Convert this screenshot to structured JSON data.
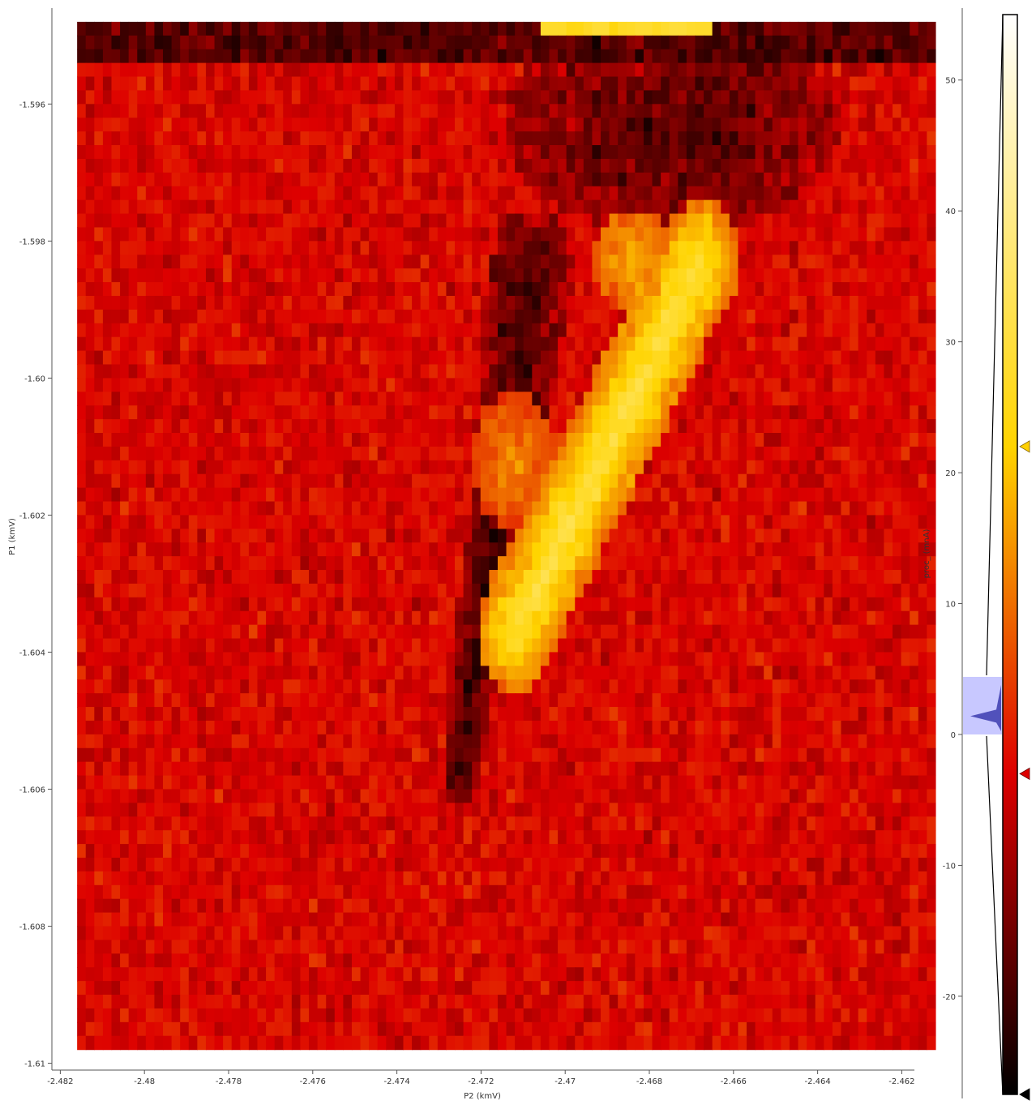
{
  "chart_data": {
    "type": "heatmap",
    "xlabel": "P2 (kmV)",
    "ylabel": "P1 (kmV)",
    "colorbar_label": "proc_ (mnA)",
    "xlim": [
      -2.4822,
      -2.4617
    ],
    "ylim": [
      -1.6101,
      -1.5946
    ],
    "x_ticks": [
      {
        "value": -2.482,
        "label": "-2.482"
      },
      {
        "value": -2.48,
        "label": "-2.48"
      },
      {
        "value": -2.478,
        "label": "-2.478"
      },
      {
        "value": -2.476,
        "label": "-2.476"
      },
      {
        "value": -2.474,
        "label": "-2.474"
      },
      {
        "value": -2.472,
        "label": "-2.472"
      },
      {
        "value": -2.47,
        "label": "-2.47"
      },
      {
        "value": -2.468,
        "label": "-2.468"
      },
      {
        "value": -2.466,
        "label": "-2.466"
      },
      {
        "value": -2.464,
        "label": "-2.464"
      },
      {
        "value": -2.462,
        "label": "-2.462"
      }
    ],
    "y_ticks": [
      {
        "value": -1.596,
        "label": "-1.596"
      },
      {
        "value": -1.598,
        "label": "-1.598"
      },
      {
        "value": -1.6,
        "label": "-1.60"
      },
      {
        "value": -1.602,
        "label": "-1.602"
      },
      {
        "value": -1.604,
        "label": "-1.604"
      },
      {
        "value": -1.606,
        "label": "-1.606"
      },
      {
        "value": -1.608,
        "label": "-1.608"
      },
      {
        "value": -1.61,
        "label": "-1.61"
      }
    ],
    "image_extent": {
      "x": [
        -2.4816,
        -2.4612
      ],
      "y": [
        -1.6098,
        -1.5948
      ]
    },
    "grid_cols": 100,
    "grid_rows": 75,
    "colorbar": {
      "ticks": [
        {
          "value": 50,
          "label": "50"
        },
        {
          "value": 40,
          "label": "40"
        },
        {
          "value": 30,
          "label": "30"
        },
        {
          "value": 20,
          "label": "20"
        },
        {
          "value": 10,
          "label": "10"
        },
        {
          "value": 0,
          "label": "0"
        },
        {
          "value": -10,
          "label": "-10"
        },
        {
          "value": -20,
          "label": "-20"
        }
      ],
      "range": [
        -27.5,
        55
      ],
      "levels": {
        "low": -27.5,
        "mid": -3,
        "high": 22,
        "max": 55
      },
      "histogram_range": [
        0,
        4.4
      ],
      "colors": {
        "low": "#000000",
        "mid": "#dd0000",
        "high": "#ffd400",
        "max": "#ffffff",
        "low_marker": "#000000",
        "mid_marker": "#dd0000",
        "high_marker": "#ffd000",
        "histogram": "#c8c8ff",
        "histogram_line": "#3333aa"
      }
    },
    "background_level": -3,
    "features": {
      "top_rows_level": -18,
      "bright_band": {
        "x_start": -2.4712,
        "y_start": -1.6037,
        "x_end": -2.4668,
        "y_end": -1.5983,
        "width": 0.0009,
        "level": 24
      },
      "secondary_bright": {
        "x": -2.4683,
        "y": -1.5983,
        "level": 18
      },
      "dark_shadow": {
        "x_start": -2.4725,
        "y_start": -1.6058,
        "x_end": -2.4708,
        "y_end": -1.5985,
        "width": 0.0007,
        "level": -20
      },
      "dark_upper": {
        "x": -2.4675,
        "y": -1.5963,
        "level": -19
      },
      "top_bright_strip": {
        "x": [
          -2.4705,
          -2.4665
        ],
        "level": 28
      }
    }
  }
}
